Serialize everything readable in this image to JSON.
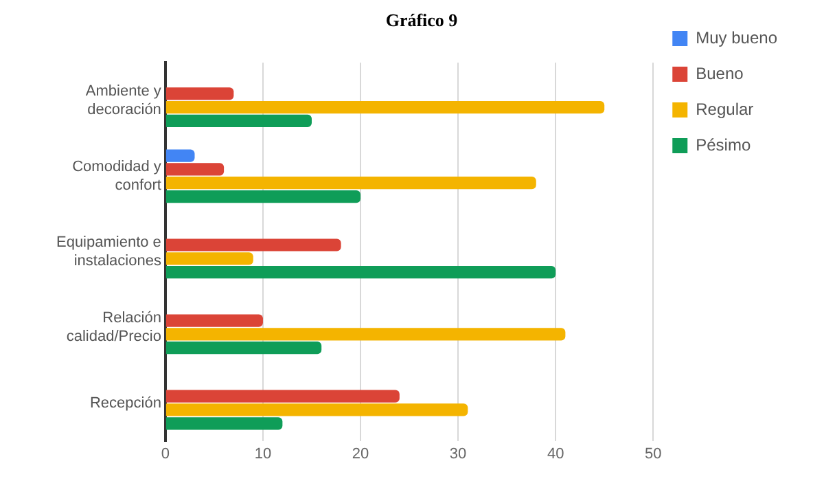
{
  "chart_data": {
    "type": "bar",
    "orientation": "horizontal",
    "title": "Gráfico 9",
    "categories": [
      "Ambiente y decoración",
      "Comodidad y confort",
      "Equipamiento e instalaciones",
      "Relación calidad/Precio",
      "Recepción"
    ],
    "series": [
      {
        "name": "Muy bueno",
        "color": "#4285f4",
        "values": [
          0,
          3,
          0,
          0,
          0
        ]
      },
      {
        "name": "Bueno",
        "color": "#db4437",
        "values": [
          7,
          6,
          18,
          10,
          24
        ]
      },
      {
        "name": "Regular",
        "color": "#f4b400",
        "values": [
          45,
          38,
          9,
          41,
          31
        ]
      },
      {
        "name": "Pésimo",
        "color": "#0f9d58",
        "values": [
          15,
          20,
          40,
          16,
          12
        ]
      }
    ],
    "xlim": [
      0,
      50
    ],
    "xticks": [
      0,
      10,
      20,
      30,
      40,
      50
    ],
    "grid": "x",
    "legend": "right"
  }
}
